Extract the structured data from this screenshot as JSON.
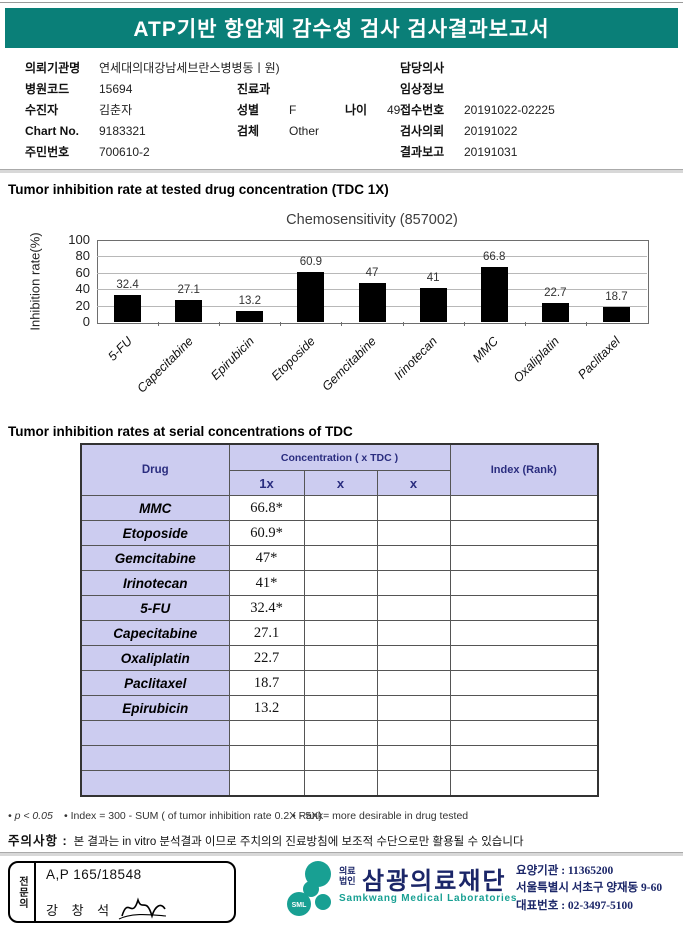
{
  "page": {
    "title": "ATP기반 항암제 감수성 검사 검사결과보고서"
  },
  "colors": {
    "header_teal": "#0a7f78",
    "table_header_bg": "#ccccf0",
    "table_header_text": "#2a2d7f",
    "logo_teal": "#18a093",
    "logo_navy": "#1b2668",
    "bar_color": "#000000"
  },
  "patient_info": {
    "left": [
      {
        "label": "의뢰기관명",
        "value": "연세대의대강남세브란스병병동ㅣ원)"
      },
      {
        "label": "병원코드",
        "value": "15694"
      },
      {
        "label": "수진자",
        "value": "김춘자"
      },
      {
        "label": "Chart No.",
        "value": "9183321"
      },
      {
        "label": "주민번호",
        "value": "700610-2"
      }
    ],
    "middle": [
      {
        "label": "진료과",
        "value": ""
      },
      {
        "label": "성별",
        "value": "F",
        "label2": "나이",
        "value2": "49"
      },
      {
        "label": "검체",
        "value": "Other"
      }
    ],
    "right": [
      {
        "label": "담당의사",
        "value": ""
      },
      {
        "label": "임상정보",
        "value": ""
      },
      {
        "label": "접수번호",
        "value": "20191022-02225"
      },
      {
        "label": "검사의뢰",
        "value": "20191022"
      },
      {
        "label": "결과보고",
        "value": "20191031"
      }
    ]
  },
  "sections": {
    "chart_title": "Tumor inhibition rate at tested drug concentration (TDC 1X)",
    "table_title": "Tumor inhibition rates at serial concentrations of TDC"
  },
  "chart_data": {
    "type": "bar",
    "title": "Chemosensitivity (857002)",
    "ylabel": "Inhibition rate(%)",
    "xlabel": "",
    "categories": [
      "5-FU",
      "Capecitabine",
      "Epirubicin",
      "Etoposide",
      "Gemcitabine",
      "Irinotecan",
      "MMC",
      "Oxaliplatin",
      "Paclitaxel"
    ],
    "values": [
      32.4,
      27.1,
      13.2,
      60.9,
      47,
      41,
      66.8,
      22.7,
      18.7
    ],
    "value_labels": [
      "32.4",
      "27.1",
      "13.2",
      "60.9",
      "47",
      "41",
      "66.8",
      "22.7",
      "18.7"
    ],
    "ylim": [
      0,
      100
    ],
    "yticks": [
      0,
      20,
      40,
      60,
      80,
      100
    ],
    "grid": true,
    "legend": "none",
    "bar_color": "#000000"
  },
  "table": {
    "headers": {
      "drug": "Drug",
      "concentration": "Concentration ( x TDC )",
      "sub": [
        "1x",
        "x",
        "x"
      ],
      "index": "Index (Rank)"
    },
    "rows": [
      [
        "MMC",
        "66.8*",
        "",
        "",
        ""
      ],
      [
        "Etoposide",
        "60.9*",
        "",
        "",
        ""
      ],
      [
        "Gemcitabine",
        "47*",
        "",
        "",
        ""
      ],
      [
        "Irinotecan",
        "41*",
        "",
        "",
        ""
      ],
      [
        "5-FU",
        "32.4*",
        "",
        "",
        ""
      ],
      [
        "Capecitabine",
        "27.1",
        "",
        "",
        ""
      ],
      [
        "Oxaliplatin",
        "22.7",
        "",
        "",
        ""
      ],
      [
        "Paclitaxel",
        "18.7",
        "",
        "",
        ""
      ],
      [
        "Epirubicin",
        "13.2",
        "",
        "",
        ""
      ],
      [
        "",
        "",
        "",
        "",
        ""
      ],
      [
        "",
        "",
        "",
        "",
        ""
      ],
      [
        "",
        "",
        "",
        "",
        ""
      ]
    ]
  },
  "footnotes": [
    "• p < 0.05",
    "• Index = 300 - SUM ( of tumor inhibition rate 0.2X  -  5X)",
    "• Rank= more desirable in drug tested"
  ],
  "notice": {
    "label": "주의사항 :",
    "text": "본 결과는 in vitro 분석결과 이므로 주치의의 진료방침에 보조적 수단으로만 활용될 수 있습니다"
  },
  "footer": {
    "stamp": {
      "side_label": "전문의",
      "line1": "A,P 165/18548",
      "line2": "강 창 석"
    },
    "logo": {
      "sml": "SML",
      "prefix_line1": "의료",
      "prefix_line2": "법인",
      "name": "삼광의료재단",
      "subtitle": "Samkwang Medical Laboratories"
    },
    "contact": [
      "요양기관 : 11365200",
      "서울특별시 서초구 양재동 9-60",
      "대표번호 : 02-3497-5100"
    ]
  }
}
